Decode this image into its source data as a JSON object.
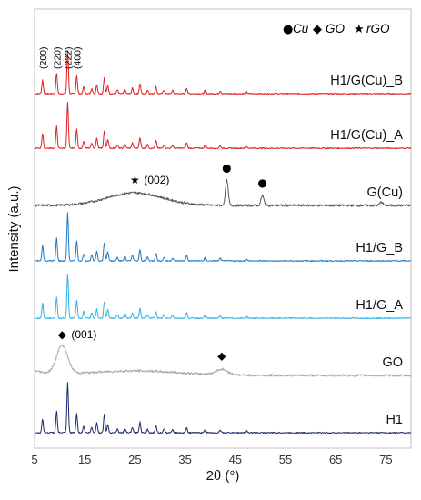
{
  "chart_data": {
    "type": "line",
    "xlabel": "2θ (°)",
    "ylabel": "Intensity (a.u.)",
    "xlim": [
      5,
      80
    ],
    "xticks": [
      "5",
      "15",
      "25",
      "35",
      "45",
      "55",
      "65",
      "75"
    ],
    "grid": false,
    "legend": {
      "placement": "top-right",
      "items": [
        {
          "symbol": "●",
          "label": "Cu"
        },
        {
          "symbol": "◆",
          "label": "GO"
        },
        {
          "symbol": "★",
          "label": "rGO"
        }
      ]
    },
    "peak_labels_H1": [
      "(200)",
      "(220)",
      "(222)",
      "(400)"
    ],
    "series": [
      {
        "name": "H1/G(Cu)_B",
        "color": "#e02020",
        "kind": "crystalline",
        "peaks": [
          [
            6.6,
            0.3
          ],
          [
            9.4,
            0.45
          ],
          [
            11.6,
            0.95
          ],
          [
            13.4,
            0.4
          ],
          [
            14.8,
            0.15
          ],
          [
            16.4,
            0.12
          ],
          [
            17.4,
            0.2
          ],
          [
            18.9,
            0.35
          ],
          [
            19.6,
            0.18
          ],
          [
            21.5,
            0.08
          ],
          [
            23.0,
            0.1
          ],
          [
            24.5,
            0.12
          ],
          [
            26.0,
            0.22
          ],
          [
            27.5,
            0.08
          ],
          [
            29.2,
            0.15
          ],
          [
            30.8,
            0.08
          ],
          [
            32.5,
            0.07
          ],
          [
            35.3,
            0.12
          ],
          [
            39.0,
            0.08
          ],
          [
            42.0,
            0.06
          ],
          [
            47.2,
            0.05
          ]
        ]
      },
      {
        "name": "H1/G(Cu)_A",
        "color": "#e02020",
        "kind": "crystalline",
        "peaks": [
          [
            6.6,
            0.32
          ],
          [
            9.4,
            0.48
          ],
          [
            11.6,
            1.0
          ],
          [
            13.4,
            0.42
          ],
          [
            14.8,
            0.16
          ],
          [
            16.4,
            0.12
          ],
          [
            17.4,
            0.22
          ],
          [
            18.9,
            0.38
          ],
          [
            19.6,
            0.2
          ],
          [
            21.5,
            0.08
          ],
          [
            23.0,
            0.1
          ],
          [
            24.5,
            0.12
          ],
          [
            26.0,
            0.24
          ],
          [
            27.5,
            0.08
          ],
          [
            29.2,
            0.16
          ],
          [
            30.8,
            0.08
          ],
          [
            32.5,
            0.07
          ],
          [
            35.3,
            0.12
          ],
          [
            39.0,
            0.08
          ],
          [
            42.0,
            0.06
          ],
          [
            47.2,
            0.05
          ]
        ]
      },
      {
        "name": "G(Cu)",
        "color": "#555555",
        "kind": "graphene",
        "hump_center": 25.0,
        "hump_height": 0.28,
        "peaks": [
          [
            43.3,
            0.55
          ],
          [
            50.4,
            0.22
          ],
          [
            74.1,
            0.08
          ]
        ]
      },
      {
        "name": "H1/G_B",
        "color": "#1e7ac8",
        "kind": "crystalline",
        "peaks": [
          [
            6.6,
            0.35
          ],
          [
            9.4,
            0.5
          ],
          [
            11.6,
            1.05
          ],
          [
            13.4,
            0.45
          ],
          [
            14.8,
            0.16
          ],
          [
            16.4,
            0.13
          ],
          [
            17.4,
            0.22
          ],
          [
            18.9,
            0.4
          ],
          [
            19.6,
            0.2
          ],
          [
            21.5,
            0.09
          ],
          [
            23.0,
            0.11
          ],
          [
            24.5,
            0.13
          ],
          [
            26.0,
            0.25
          ],
          [
            27.5,
            0.09
          ],
          [
            29.2,
            0.17
          ],
          [
            30.8,
            0.08
          ],
          [
            32.5,
            0.07
          ],
          [
            35.3,
            0.13
          ],
          [
            39.0,
            0.08
          ],
          [
            42.0,
            0.06
          ],
          [
            47.2,
            0.05
          ]
        ]
      },
      {
        "name": "H1/G_A",
        "color": "#2ab4e8",
        "kind": "crystalline",
        "peaks": [
          [
            6.6,
            0.33
          ],
          [
            9.4,
            0.47
          ],
          [
            11.6,
            0.98
          ],
          [
            13.4,
            0.4
          ],
          [
            14.8,
            0.15
          ],
          [
            16.4,
            0.12
          ],
          [
            17.4,
            0.2
          ],
          [
            18.9,
            0.36
          ],
          [
            19.6,
            0.18
          ],
          [
            21.5,
            0.08
          ],
          [
            23.0,
            0.1
          ],
          [
            24.5,
            0.12
          ],
          [
            26.0,
            0.22
          ],
          [
            27.5,
            0.08
          ],
          [
            29.2,
            0.15
          ],
          [
            30.8,
            0.08
          ],
          [
            32.5,
            0.07
          ],
          [
            35.3,
            0.12
          ],
          [
            39.0,
            0.08
          ],
          [
            42.0,
            0.06
          ],
          [
            47.2,
            0.05
          ]
        ]
      },
      {
        "name": "GO",
        "color": "#a8a8a8",
        "kind": "go",
        "peaks": [
          [
            10.5,
            0.62
          ],
          [
            42.3,
            0.15
          ]
        ]
      },
      {
        "name": "H1",
        "color": "#1a2a6c",
        "kind": "crystalline",
        "peaks": [
          [
            6.6,
            0.3
          ],
          [
            9.4,
            0.48
          ],
          [
            11.6,
            1.1
          ],
          [
            13.4,
            0.42
          ],
          [
            14.8,
            0.15
          ],
          [
            16.4,
            0.12
          ],
          [
            17.4,
            0.22
          ],
          [
            18.9,
            0.4
          ],
          [
            19.6,
            0.18
          ],
          [
            21.5,
            0.08
          ],
          [
            23.0,
            0.1
          ],
          [
            24.5,
            0.12
          ],
          [
            26.0,
            0.24
          ],
          [
            27.5,
            0.08
          ],
          [
            29.2,
            0.16
          ],
          [
            30.8,
            0.08
          ],
          [
            32.5,
            0.07
          ],
          [
            35.3,
            0.12
          ],
          [
            39.0,
            0.08
          ],
          [
            42.0,
            0.06
          ],
          [
            47.2,
            0.05
          ]
        ]
      }
    ],
    "annotations": [
      {
        "series": "G(Cu)",
        "x": 25.0,
        "symbol": "★",
        "text": "(002)"
      },
      {
        "series": "G(Cu)",
        "x": 43.3,
        "symbol": "●",
        "text": ""
      },
      {
        "series": "G(Cu)",
        "x": 50.4,
        "symbol": "●",
        "text": ""
      },
      {
        "series": "GO",
        "x": 10.5,
        "symbol": "◆",
        "text": "(001)"
      },
      {
        "series": "GO",
        "x": 42.3,
        "symbol": "◆",
        "text": ""
      }
    ]
  }
}
